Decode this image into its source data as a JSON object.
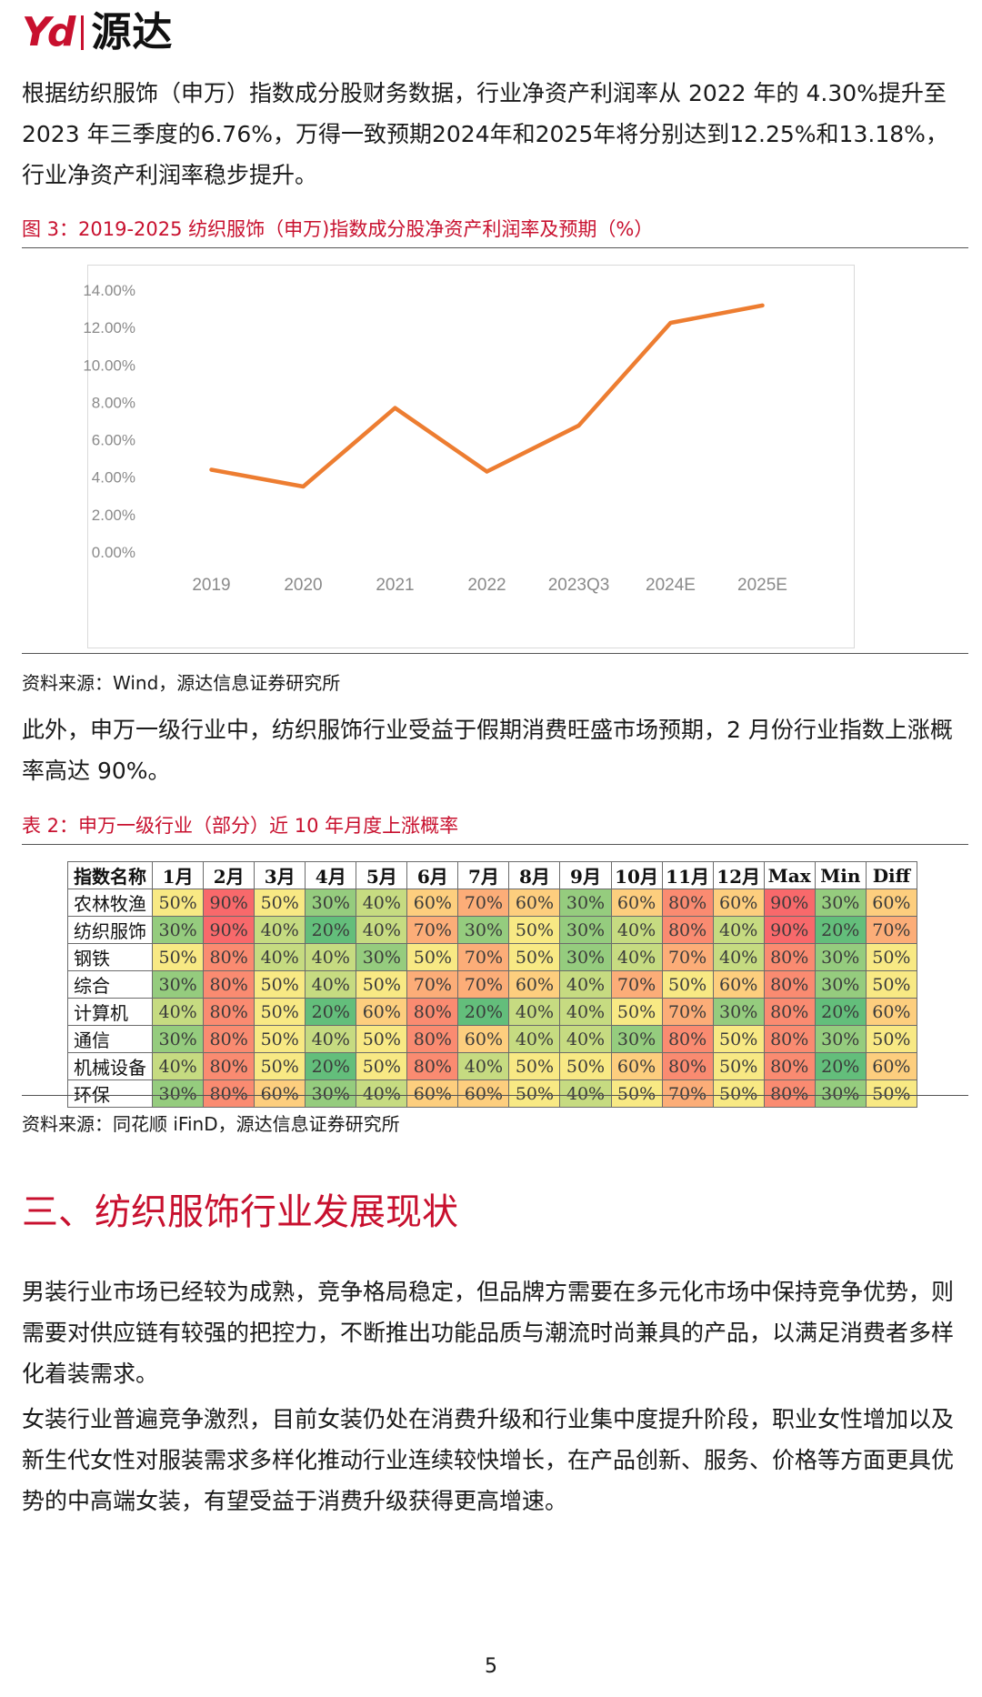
{
  "header": {
    "logo_mark": "Yd",
    "logo_text": "源达"
  },
  "paragraphs": {
    "p1": "根据纺织服饰（申万）指数成分股财务数据，行业净资产利润率从 2022 年的 4.30%提升至2023 年三季度的6.76%，万得一致预期2024年和2025年将分别达到12.25%和13.18%，行业净资产利润率稳步提升。",
    "p2": "此外，申万一级行业中，纺织服饰行业受益于假期消费旺盛市场预期，2 月份行业指数上涨概率高达 90%。",
    "p3": "男装行业市场已经较为成熟，竞争格局稳定，但品牌方需要在多元化市场中保持竞争优势，则需要对供应链有较强的把控力，不断推出功能品质与潮流时尚兼具的产品，以满足消费者多样化着装需求。",
    "p4": "女装行业普遍竞争激烈，目前女装仍处在消费升级和行业集中度提升阶段，职业女性增加以及新生代女性对服装需求多样化推动行业连续较快增长，在产品创新、服务、价格等方面更具优势的中高端女装，有望受益于消费升级获得更高增速。"
  },
  "figure": {
    "title": "图 3：2019-2025 纺织服饰（申万)指数成分股净资产利润率及预期（%）",
    "source": "资料来源：Wind，源达信息证券研究所"
  },
  "chart_data": {
    "type": "line",
    "categories": [
      "2019",
      "2020",
      "2021",
      "2022",
      "2023Q3",
      "2024E",
      "2025E"
    ],
    "series": [
      {
        "values": [
          4.4,
          3.5,
          7.7,
          4.3,
          6.76,
          12.25,
          13.18
        ],
        "color": "#ed7d31"
      }
    ],
    "yticks": [
      "0.00%",
      "2.00%",
      "4.00%",
      "6.00%",
      "8.00%",
      "10.00%",
      "12.00%",
      "14.00%"
    ],
    "ylim": [
      0,
      14
    ],
    "grid": false,
    "legend": "none"
  },
  "table": {
    "title": "表 2：申万一级行业（部分）近 10 年月度上涨概率",
    "source": "资料来源：同花顺 iFinD，源达信息证券研究所",
    "headers": [
      "指数名称",
      "1月",
      "2月",
      "3月",
      "4月",
      "5月",
      "6月",
      "7月",
      "8月",
      "9月",
      "10月",
      "11月",
      "12月",
      "Max",
      "Min",
      "Diff"
    ],
    "rows": [
      {
        "name": "农林牧渔",
        "values": [
          50,
          90,
          50,
          30,
          40,
          60,
          70,
          60,
          30,
          60,
          80,
          60,
          90,
          30,
          60
        ]
      },
      {
        "name": "纺织服饰",
        "values": [
          30,
          90,
          40,
          20,
          40,
          70,
          30,
          50,
          30,
          40,
          80,
          40,
          90,
          20,
          70
        ]
      },
      {
        "name": "钢铁",
        "values": [
          50,
          80,
          40,
          40,
          30,
          50,
          70,
          50,
          30,
          40,
          70,
          40,
          80,
          30,
          50
        ]
      },
      {
        "name": "综合",
        "values": [
          30,
          80,
          50,
          40,
          50,
          70,
          70,
          60,
          40,
          70,
          50,
          60,
          80,
          30,
          50
        ]
      },
      {
        "name": "计算机",
        "values": [
          40,
          80,
          50,
          20,
          60,
          80,
          20,
          40,
          40,
          50,
          70,
          30,
          80,
          20,
          60
        ]
      },
      {
        "name": "通信",
        "values": [
          30,
          80,
          50,
          40,
          50,
          80,
          60,
          40,
          40,
          30,
          80,
          50,
          80,
          30,
          50
        ]
      },
      {
        "name": "机械设备",
        "values": [
          40,
          80,
          50,
          20,
          50,
          80,
          40,
          50,
          50,
          60,
          80,
          50,
          80,
          20,
          60
        ]
      },
      {
        "name": "环保",
        "values": [
          30,
          80,
          60,
          30,
          40,
          60,
          60,
          50,
          40,
          50,
          70,
          50,
          80,
          30,
          50
        ]
      }
    ]
  },
  "section": {
    "title": "三、纺织服饰行业发展现状"
  },
  "footer": {
    "page": "5"
  }
}
